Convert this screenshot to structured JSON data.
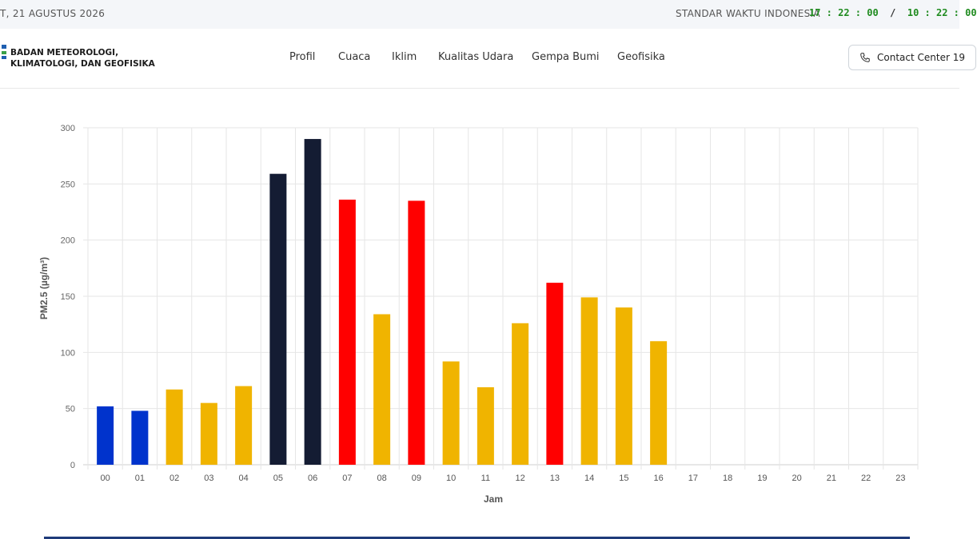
{
  "topbar": {
    "date": "T, 21 AGUSTUS 2026",
    "timezone_label": "STANDAR WAKTU INDONESIA",
    "clock_left": "17 : 22 : 00",
    "clock_sep": "/",
    "clock_right": "10 : 22 : 00"
  },
  "header": {
    "brand_line1": "BADAN METEOROLOGI,",
    "brand_line2": "KLIMATOLOGI, DAN GEOFISIKA",
    "nav": [
      "Profil",
      "Cuaca",
      "Iklim",
      "Kualitas Udara",
      "Gempa Bumi",
      "Geofisika"
    ],
    "contact_label": "Contact Center 19",
    "logo_icon": "bmkg-logo-icon",
    "phone_icon": "phone-icon"
  },
  "colors": {
    "good": "#0033cc",
    "moderate": "#f0b400",
    "unhealthy": "#ff0000",
    "hazardous": "#141c33",
    "accent": "#1f3b7a"
  },
  "chart_data": {
    "type": "bar",
    "categories": [
      "00",
      "01",
      "02",
      "03",
      "04",
      "05",
      "06",
      "07",
      "08",
      "09",
      "10",
      "11",
      "12",
      "13",
      "14",
      "15",
      "16",
      "17",
      "18",
      "19",
      "20",
      "21",
      "22",
      "23"
    ],
    "values": [
      52,
      48,
      67,
      55,
      70,
      259,
      290,
      236,
      134,
      235,
      92,
      69,
      126,
      162,
      149,
      140,
      110,
      null,
      null,
      null,
      null,
      null,
      null,
      null
    ],
    "colors": [
      "#0033cc",
      "#0033cc",
      "#f0b400",
      "#f0b400",
      "#f0b400",
      "#141c33",
      "#141c33",
      "#ff0000",
      "#f0b400",
      "#ff0000",
      "#f0b400",
      "#f0b400",
      "#f0b400",
      "#ff0000",
      "#f0b400",
      "#f0b400",
      "#f0b400",
      null,
      null,
      null,
      null,
      null,
      null,
      null
    ],
    "xlabel": "Jam",
    "ylabel": "PM2.5 (µg/m³)",
    "ylim": [
      0,
      300
    ],
    "yticks": [
      0,
      50,
      100,
      150,
      200,
      250,
      300
    ],
    "grid": true
  }
}
